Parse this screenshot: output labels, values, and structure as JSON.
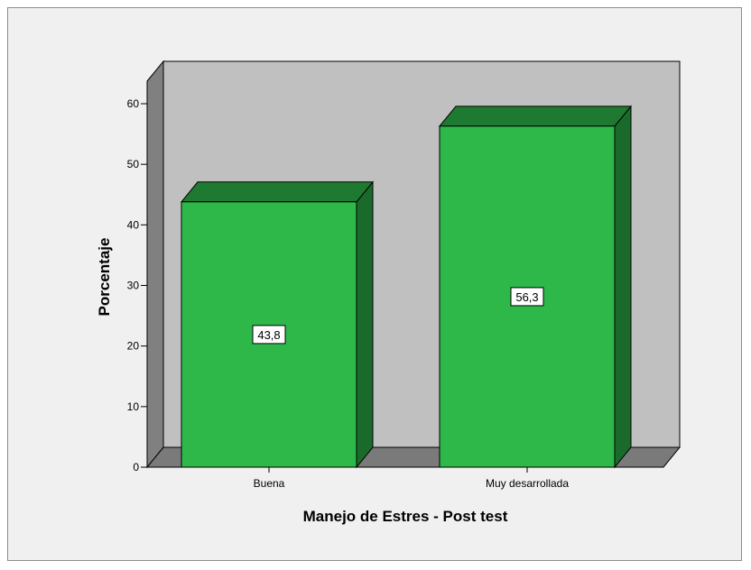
{
  "chart_data": {
    "type": "bar",
    "style": "3d",
    "categories": [
      "Buena",
      "Muy desarrollada"
    ],
    "values": [
      43.8,
      56.3
    ],
    "value_labels": [
      "43,8",
      "56,3"
    ],
    "title": "",
    "xlabel": "Manejo de Estres - Post test",
    "ylabel": "Porcentaje",
    "ylim": [
      0,
      60
    ],
    "yticks": [
      0,
      10,
      20,
      30,
      40,
      50,
      60
    ],
    "grid": false,
    "legend": "none"
  },
  "colors": {
    "background": "#f0f0f0",
    "back_wall": "#c0c0c0",
    "side_wall": "#808080",
    "floor": "#7a7a7a",
    "bar_front": "#2eb84a",
    "bar_top": "#1f7a31",
    "bar_side": "#1a6b2b",
    "bar_outline": "#000000"
  }
}
